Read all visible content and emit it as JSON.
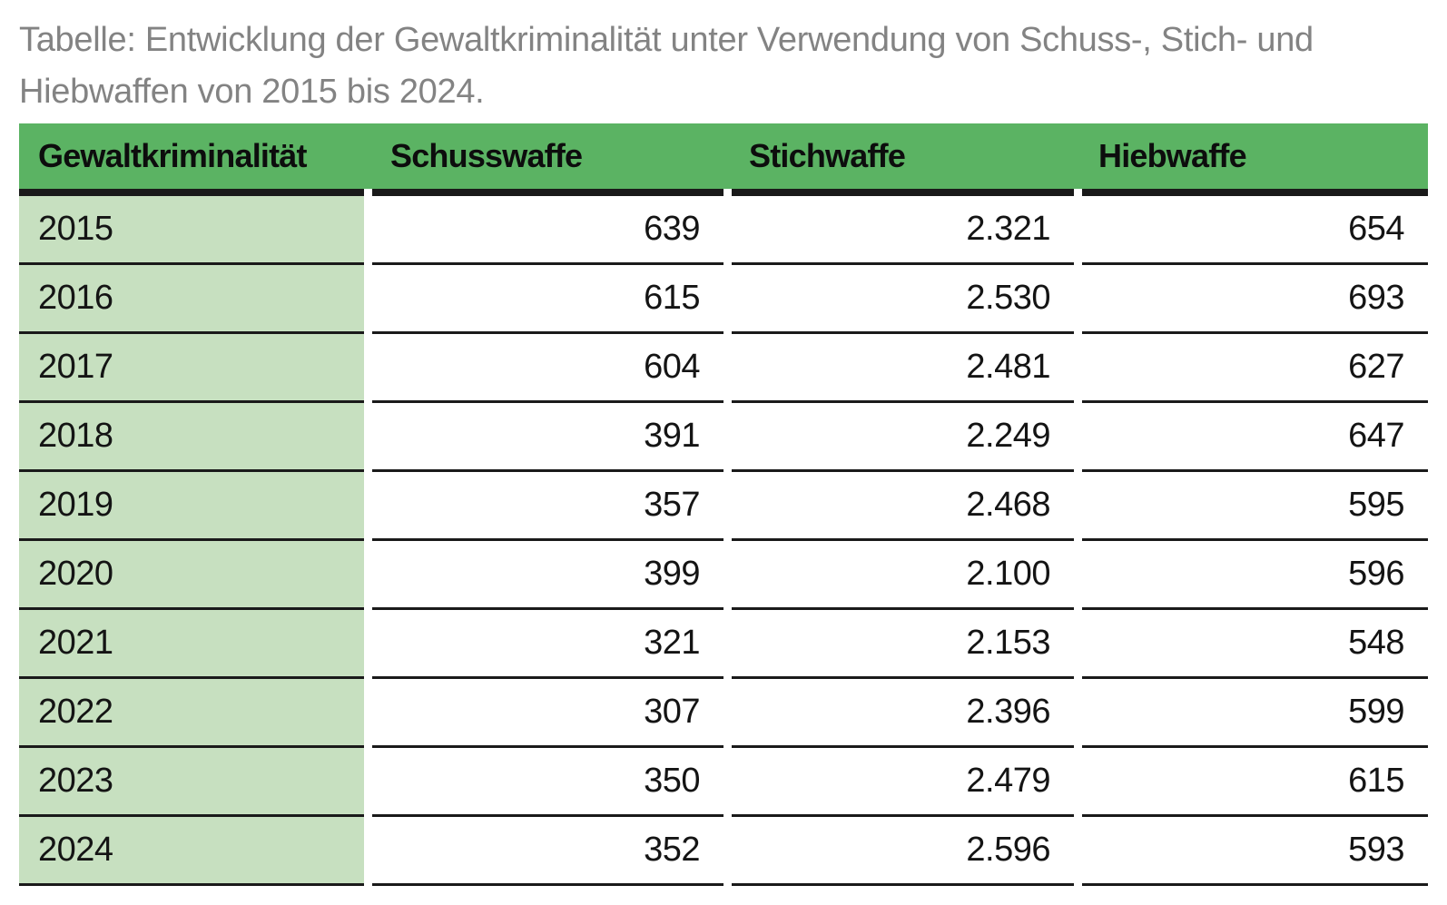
{
  "title_lines": [
    "Tabelle: Entwicklung der Gewaltkriminalität unter Verwendung von Schuss-, Stich- und",
    "Hiebwaffen von 2015 bis 2024."
  ],
  "colors": {
    "header_green": "#5bb363",
    "row_green": "#c7e0c0",
    "title_gray": "#838383",
    "line_black": "#1a1a1a",
    "text_black": "#141414",
    "page_bg": "#ffffff"
  },
  "chart_data": {
    "type": "table",
    "title": "Tabelle: Entwicklung der Gewaltkriminalität unter Verwendung von Schuss-, Stich- und Hiebwaffen von 2015 bis 2024.",
    "columns": [
      "Gewaltkriminalität",
      "Schusswaffe",
      "Stichwaffe",
      "Hiebwaffe"
    ],
    "rows": [
      {
        "year": "2015",
        "schusswaffe": "639",
        "stichwaffe": "2.321",
        "hiebwaffe": "654"
      },
      {
        "year": "2016",
        "schusswaffe": "615",
        "stichwaffe": "2.530",
        "hiebwaffe": "693"
      },
      {
        "year": "2017",
        "schusswaffe": "604",
        "stichwaffe": "2.481",
        "hiebwaffe": "627"
      },
      {
        "year": "2018",
        "schusswaffe": "391",
        "stichwaffe": "2.249",
        "hiebwaffe": "647"
      },
      {
        "year": "2019",
        "schusswaffe": "357",
        "stichwaffe": "2.468",
        "hiebwaffe": "595"
      },
      {
        "year": "2020",
        "schusswaffe": "399",
        "stichwaffe": "2.100",
        "hiebwaffe": "596"
      },
      {
        "year": "2021",
        "schusswaffe": "321",
        "stichwaffe": "2.153",
        "hiebwaffe": "548"
      },
      {
        "year": "2022",
        "schusswaffe": "307",
        "stichwaffe": "2.396",
        "hiebwaffe": "599"
      },
      {
        "year": "2023",
        "schusswaffe": "350",
        "stichwaffe": "2.479",
        "hiebwaffe": "615"
      },
      {
        "year": "2024",
        "schusswaffe": "352",
        "stichwaffe": "2.596",
        "hiebwaffe": "593"
      }
    ]
  }
}
